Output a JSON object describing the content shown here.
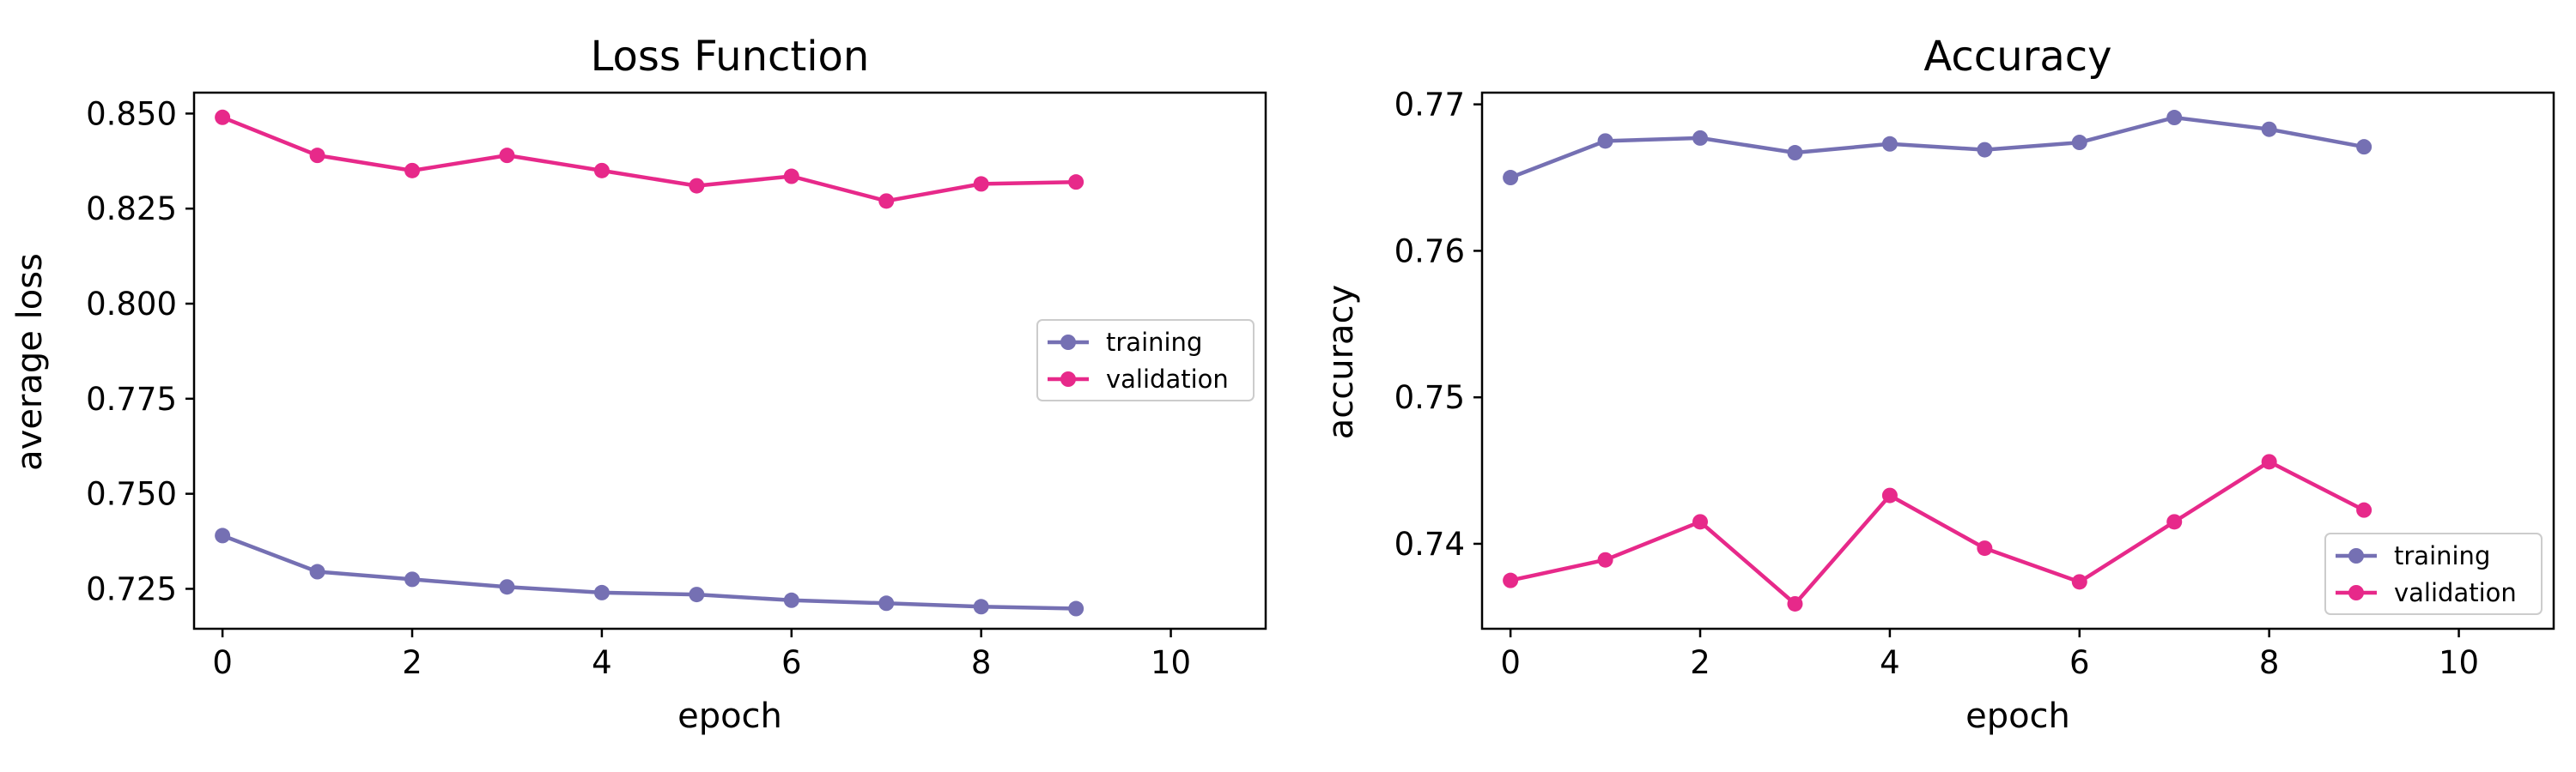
{
  "chart_data": [
    {
      "id": "loss",
      "type": "line",
      "title": "Loss Function",
      "xlabel": "epoch",
      "ylabel": "average loss",
      "xlim": [
        -0.3,
        11.0
      ],
      "ylim": [
        0.7145,
        0.8555
      ],
      "xticks": [
        0,
        2,
        4,
        6,
        8,
        10
      ],
      "yticks": [
        0.725,
        0.75,
        0.775,
        0.8,
        0.825,
        0.85
      ],
      "ytick_labels": [
        "0.725",
        "0.750",
        "0.775",
        "0.800",
        "0.825",
        "0.850"
      ],
      "grid": false,
      "legend": "center-right",
      "x": [
        0,
        1,
        2,
        3,
        4,
        5,
        6,
        7,
        8,
        9
      ],
      "series": [
        {
          "name": "training",
          "color": "#7570b3",
          "values": [
            0.739,
            0.7295,
            0.7275,
            0.7255,
            0.724,
            0.7235,
            0.722,
            0.7212,
            0.7203,
            0.7198
          ]
        },
        {
          "name": "validation",
          "color": "#e7298a",
          "values": [
            0.849,
            0.839,
            0.835,
            0.839,
            0.835,
            0.831,
            0.8335,
            0.827,
            0.8315,
            0.832
          ]
        }
      ]
    },
    {
      "id": "accuracy",
      "type": "line",
      "title": "Accuracy",
      "xlabel": "epoch",
      "ylabel": "accuracy",
      "xlim": [
        -0.3,
        11.0
      ],
      "ylim": [
        0.7342,
        0.7708
      ],
      "xticks": [
        0,
        2,
        4,
        6,
        8,
        10
      ],
      "yticks": [
        0.74,
        0.75,
        0.76,
        0.77
      ],
      "ytick_labels": [
        "0.74",
        "0.75",
        "0.76",
        "0.77"
      ],
      "grid": false,
      "legend": "lower-right",
      "x": [
        0,
        1,
        2,
        3,
        4,
        5,
        6,
        7,
        8,
        9
      ],
      "series": [
        {
          "name": "training",
          "color": "#7570b3",
          "values": [
            0.765,
            0.7675,
            0.7677,
            0.7667,
            0.7673,
            0.7669,
            0.7674,
            0.7691,
            0.7683,
            0.7671
          ]
        },
        {
          "name": "validation",
          "color": "#e7298a",
          "values": [
            0.7375,
            0.7389,
            0.7415,
            0.7359,
            0.7433,
            0.7397,
            0.7374,
            0.7415,
            0.7456,
            0.7423
          ]
        }
      ]
    }
  ]
}
